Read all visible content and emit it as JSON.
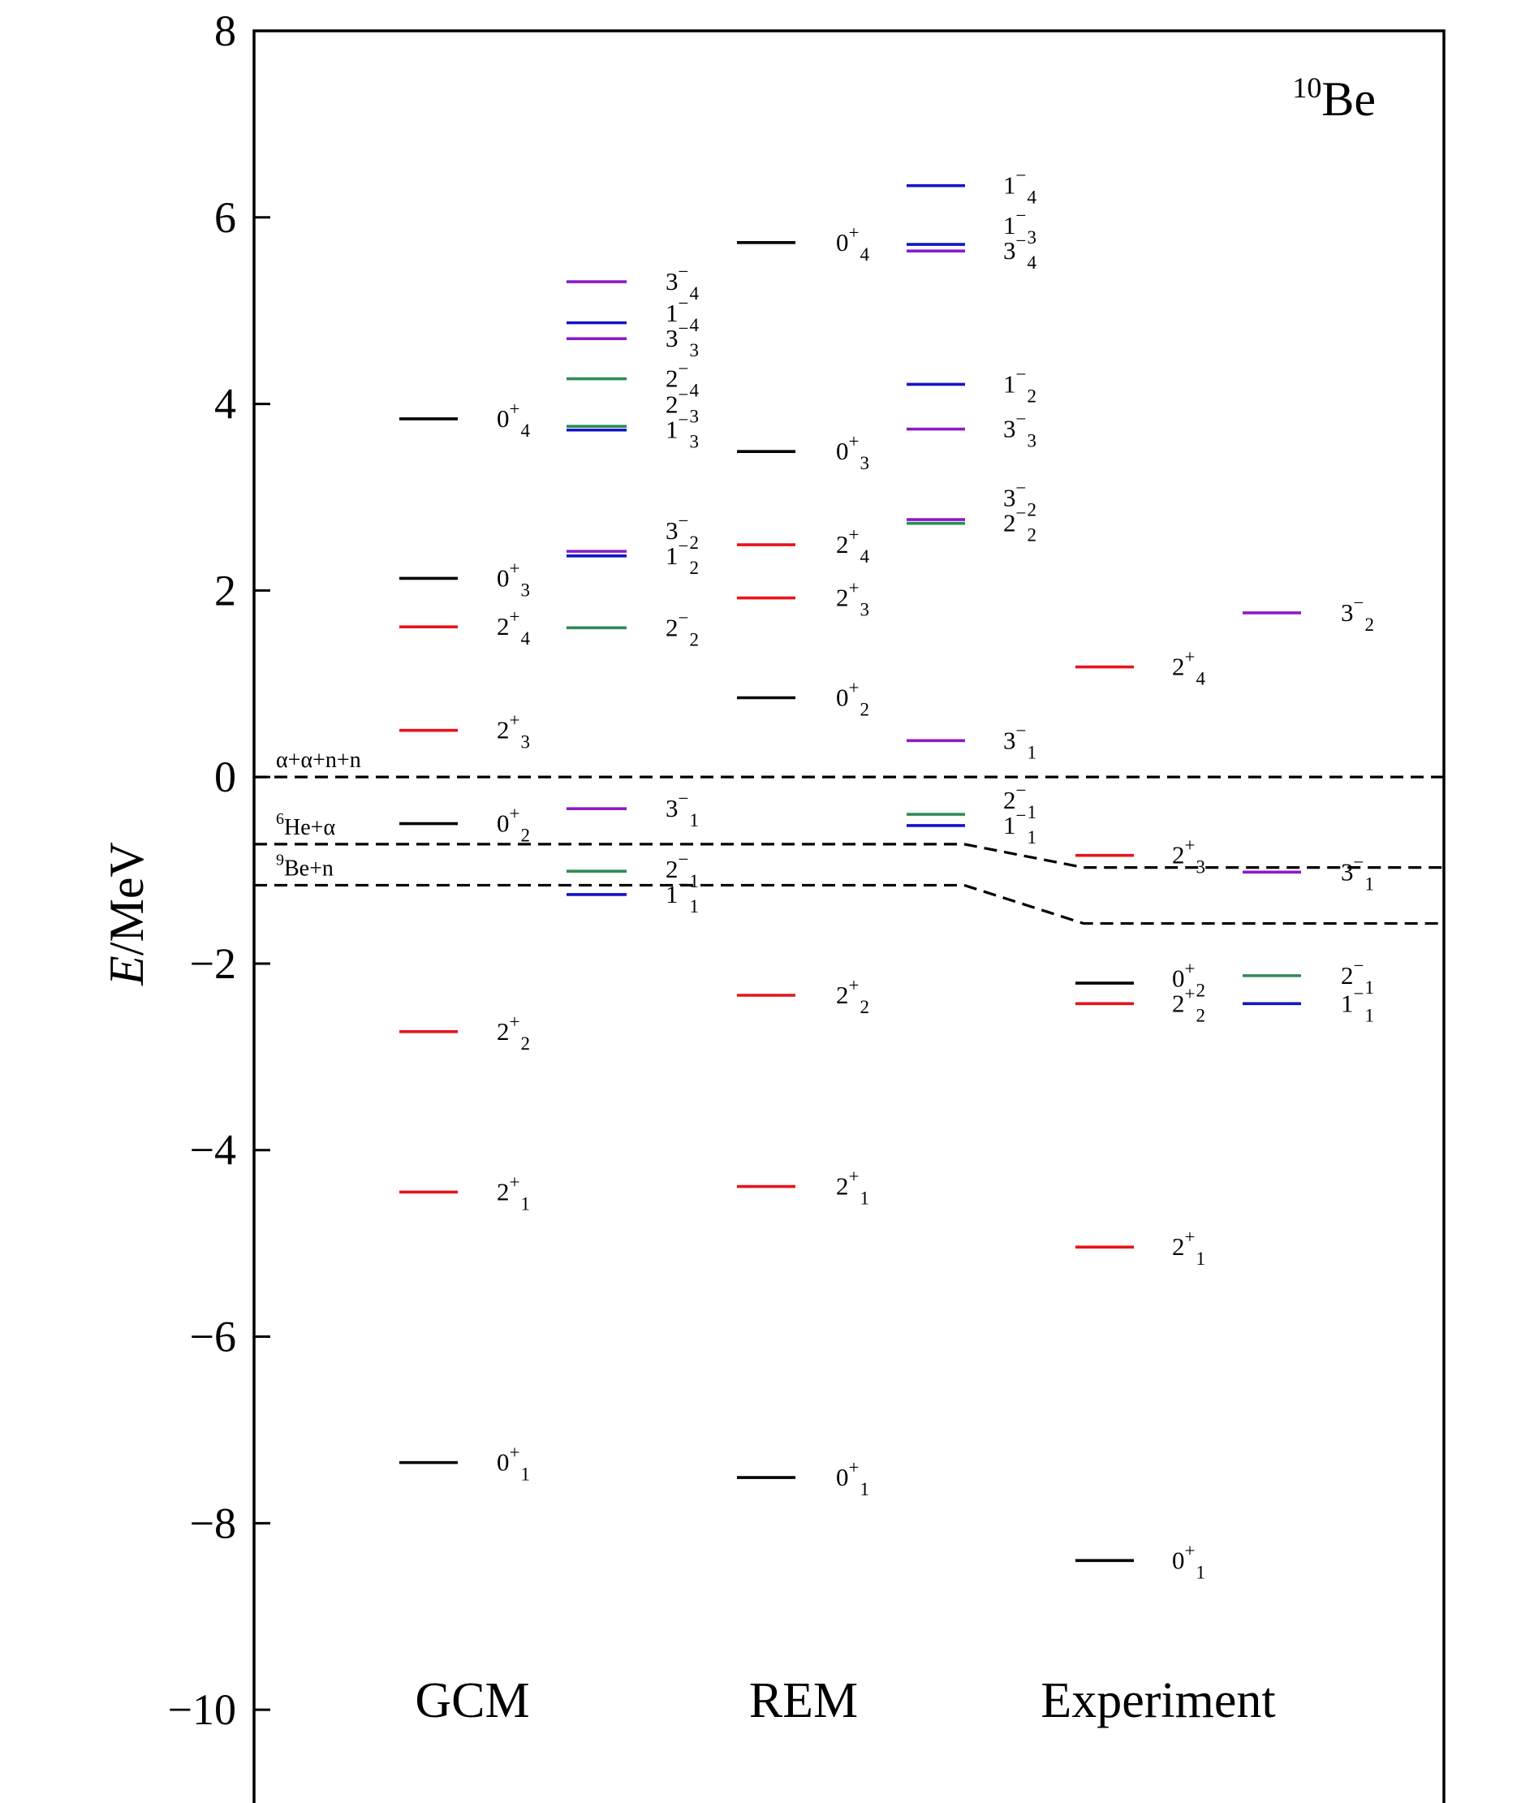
{
  "chart_data": {
    "type": "level-scheme",
    "nucleus": {
      "mass": "10",
      "symbol": "Be"
    },
    "ylabel_italic": "E",
    "ylabel_rest": "/MeV",
    "ylim": [
      -11,
      8
    ],
    "yticks": [
      8,
      6,
      4,
      2,
      0,
      -2,
      -4,
      -6,
      -8,
      -10
    ],
    "ytick_labels": [
      "8",
      "6",
      "4",
      "2",
      "0",
      "−2",
      "−4",
      "−6",
      "−8",
      "−10"
    ],
    "colors": {
      "0+": "#000000",
      "2+": "#e8141b",
      "1-": "#1414c8",
      "2-": "#2e8b57",
      "3-": "#8b1bc9",
      "threshold": "#000000"
    },
    "methods": [
      "GCM",
      "REM",
      "Experiment"
    ],
    "thresholds": [
      {
        "label": "α+α+n+n",
        "sup": "",
        "energies": {
          "GCM": 0.0,
          "REM": 0.0,
          "Experiment": 0.0
        }
      },
      {
        "label": "He+α",
        "sup": "6",
        "energies": {
          "GCM": -0.72,
          "REM": -0.72,
          "Experiment": -0.97
        }
      },
      {
        "label": "Be+n",
        "sup": "9",
        "energies": {
          "GCM": -1.16,
          "REM": -1.16,
          "Experiment": -1.57
        }
      }
    ],
    "columns": [
      {
        "method": "GCM",
        "parity": "+",
        "levels": [
          {
            "J": "0",
            "P": "+",
            "n": "1",
            "E": -7.35
          },
          {
            "J": "2",
            "P": "+",
            "n": "1",
            "E": -4.45
          },
          {
            "J": "2",
            "P": "+",
            "n": "2",
            "E": -2.73
          },
          {
            "J": "0",
            "P": "+",
            "n": "2",
            "E": -0.5
          },
          {
            "J": "2",
            "P": "+",
            "n": "3",
            "E": 0.5
          },
          {
            "J": "2",
            "P": "+",
            "n": "4",
            "E": 1.61
          },
          {
            "J": "0",
            "P": "+",
            "n": "3",
            "E": 2.13
          },
          {
            "J": "0",
            "P": "+",
            "n": "4",
            "E": 3.84
          }
        ]
      },
      {
        "method": "GCM",
        "parity": "-",
        "levels": [
          {
            "J": "1",
            "P": "−",
            "n": "1",
            "E": -1.26
          },
          {
            "J": "2",
            "P": "−",
            "n": "1",
            "E": -1.01
          },
          {
            "J": "3",
            "P": "−",
            "n": "1",
            "E": -0.34
          },
          {
            "J": "2",
            "P": "−",
            "n": "2",
            "E": 1.6
          },
          {
            "J": "1",
            "P": "−",
            "n": "2",
            "E": 2.37
          },
          {
            "J": "3",
            "P": "−",
            "n": "2",
            "E": 2.42
          },
          {
            "J": "1",
            "P": "−",
            "n": "3",
            "E": 3.72
          },
          {
            "J": "2",
            "P": "−",
            "n": "3",
            "E": 3.76
          },
          {
            "J": "2",
            "P": "−",
            "n": "4",
            "E": 4.27
          },
          {
            "J": "3",
            "P": "−",
            "n": "3",
            "E": 4.7
          },
          {
            "J": "1",
            "P": "−",
            "n": "4",
            "E": 4.87
          },
          {
            "J": "3",
            "P": "−",
            "n": "4",
            "E": 5.31
          }
        ]
      },
      {
        "method": "REM",
        "parity": "+",
        "levels": [
          {
            "J": "0",
            "P": "+",
            "n": "1",
            "E": -7.51
          },
          {
            "J": "2",
            "P": "+",
            "n": "1",
            "E": -4.39
          },
          {
            "J": "2",
            "P": "+",
            "n": "2",
            "E": -2.34
          },
          {
            "J": "0",
            "P": "+",
            "n": "2",
            "E": 0.85
          },
          {
            "J": "2",
            "P": "+",
            "n": "3",
            "E": 1.92
          },
          {
            "J": "2",
            "P": "+",
            "n": "4",
            "E": 2.49
          },
          {
            "J": "0",
            "P": "+",
            "n": "3",
            "E": 3.49
          },
          {
            "J": "0",
            "P": "+",
            "n": "4",
            "E": 5.73
          }
        ]
      },
      {
        "method": "REM",
        "parity": "-",
        "levels": [
          {
            "J": "1",
            "P": "−",
            "n": "1",
            "E": -0.52
          },
          {
            "J": "2",
            "P": "−",
            "n": "1",
            "E": -0.4
          },
          {
            "J": "3",
            "P": "−",
            "n": "1",
            "E": 0.39
          },
          {
            "J": "2",
            "P": "−",
            "n": "2",
            "E": 2.72
          },
          {
            "J": "3",
            "P": "−",
            "n": "2",
            "E": 2.76
          },
          {
            "J": "3",
            "P": "−",
            "n": "3",
            "E": 3.73
          },
          {
            "J": "1",
            "P": "−",
            "n": "2",
            "E": 4.21
          },
          {
            "J": "3",
            "P": "−",
            "n": "4",
            "E": 5.64
          },
          {
            "J": "1",
            "P": "−",
            "n": "3",
            "E": 5.71
          },
          {
            "J": "1",
            "P": "−",
            "n": "4",
            "E": 6.34
          }
        ]
      },
      {
        "method": "Experiment",
        "parity": "+",
        "levels": [
          {
            "J": "0",
            "P": "+",
            "n": "1",
            "E": -8.4
          },
          {
            "J": "2",
            "P": "+",
            "n": "1",
            "E": -5.04
          },
          {
            "J": "2",
            "P": "+",
            "n": "2",
            "E": -2.43
          },
          {
            "J": "0",
            "P": "+",
            "n": "2",
            "E": -2.21
          },
          {
            "J": "2",
            "P": "+",
            "n": "3",
            "E": -0.84
          },
          {
            "J": "2",
            "P": "+",
            "n": "4",
            "E": 1.18
          }
        ]
      },
      {
        "method": "Experiment",
        "parity": "-",
        "levels": [
          {
            "J": "1",
            "P": "−",
            "n": "1",
            "E": -2.43
          },
          {
            "J": "2",
            "P": "−",
            "n": "1",
            "E": -2.13
          },
          {
            "J": "3",
            "P": "−",
            "n": "1",
            "E": -1.02
          },
          {
            "J": "3",
            "P": "−",
            "n": "2",
            "E": 1.76
          }
        ]
      }
    ]
  }
}
